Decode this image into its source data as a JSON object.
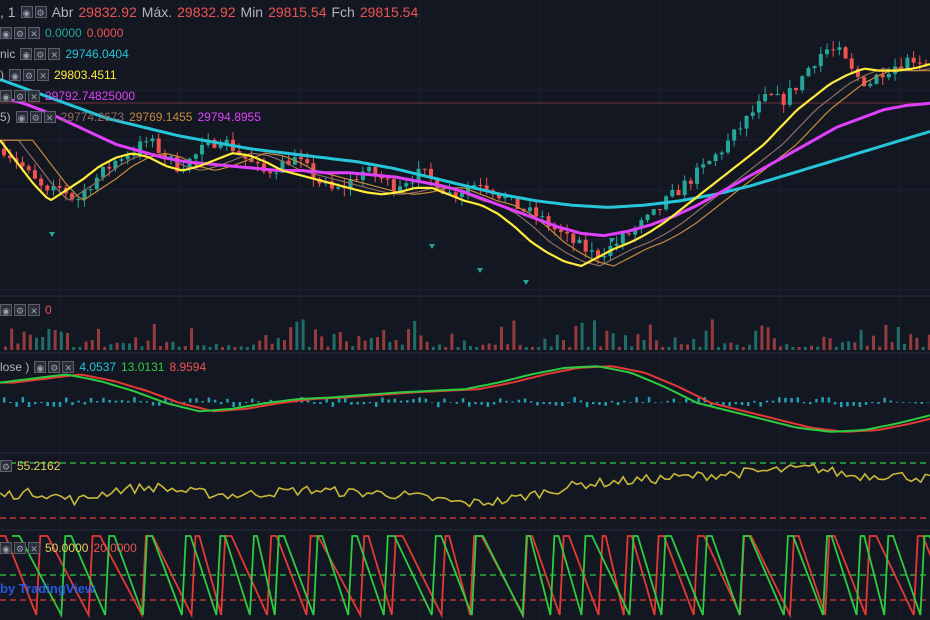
{
  "header": {
    "symbol_suffix": ", 1",
    "open_label": "Abr",
    "open_value": "29832.92",
    "high_label": "Máx.",
    "high_value": "29832.92",
    "low_label": "Min",
    "low_value": "29815.54",
    "close_label": "Fch",
    "close_value": "29815.54"
  },
  "overlays": {
    "row1_value": "0.0000",
    "row1_value2": "0.0000",
    "row2_label": "nic",
    "row2_value": "29746.0404",
    "row3_label": ")",
    "row3_value": "29803.4511",
    "row4_value": "29792.74825000",
    "row5_label": "5)",
    "row5_values": [
      "29774.2673",
      "29769.1455",
      "29794.8955"
    ]
  },
  "volume_pane": {
    "value": "0"
  },
  "macd_pane": {
    "label": "lose )",
    "values": [
      "4.0537",
      "13.0131",
      "8.9594"
    ]
  },
  "rsi_pane": {
    "value": "55.2162"
  },
  "stoch_pane": {
    "values": [
      "50.0000",
      "20.0000"
    ]
  },
  "watermark": "by TradingView",
  "colors": {
    "background": "#131722",
    "up": "#26a69a",
    "down": "#ef5350",
    "ma_yellow": "#ffeb3b",
    "ma_magenta": "#e040fb",
    "ma_cyan": "#26c6da",
    "ma_orange": "#c68a3b",
    "ma_brown": "#8d6e63",
    "osc_green": "#2ecc40",
    "osc_red": "#e53935",
    "rsi_line": "#c9b838"
  },
  "chart_data": [
    {
      "type": "candlestick",
      "pane": "price",
      "closes": [
        29776,
        29770,
        29762,
        29755,
        29758,
        29752,
        29760,
        29766,
        29772,
        29775,
        29780,
        29774,
        29768,
        29771,
        29777,
        29781,
        29776,
        29770,
        29765,
        29768,
        29772,
        29767,
        29760,
        29756,
        29761,
        29766,
        29763,
        29759,
        29762,
        29765,
        29760,
        29755,
        29758,
        29761,
        29757,
        29752,
        29748,
        29745,
        29740,
        29735,
        29731,
        29727,
        29730,
        29735,
        29740,
        29745,
        29752,
        29758,
        29764,
        29770,
        29777,
        29785,
        29793,
        29800,
        29798,
        29805,
        29815,
        29822,
        29820,
        29810,
        29806,
        29812,
        29815,
        29818,
        29816
      ],
      "x_start_index": 0,
      "ylim": [
        29710,
        29840
      ]
    },
    {
      "type": "line",
      "pane": "price",
      "series": [
        {
          "name": "",
          "color": "yellow",
          "values": [
            29780,
            29770,
            29760,
            29752,
            29757,
            29762,
            29768,
            29772,
            29774,
            29772,
            29768,
            29766,
            29768,
            29771,
            29774,
            29773,
            29770,
            29766,
            29764,
            29762,
            29760,
            29758,
            29756,
            29755,
            29756,
            29758,
            29758,
            29755,
            29752,
            29750,
            29746,
            29740,
            29733,
            29728,
            29724,
            29722,
            29726,
            29730,
            29733,
            29737,
            29742,
            29748,
            29754,
            29760,
            29766,
            29772,
            29778,
            29786,
            29794,
            29800,
            29806,
            29810,
            29813,
            29812,
            29812,
            29813,
            29815
          ]
        },
        {
          "name": "",
          "color": "magenta",
          "values": [
            29800,
            29797,
            29793,
            29788,
            29783,
            29778,
            29775,
            29772,
            29770,
            29769,
            29768,
            29767,
            29766,
            29766,
            29765,
            29765,
            29764,
            29763,
            29761,
            29759,
            29756,
            29752,
            29748,
            29744,
            29740,
            29737,
            29736,
            29738,
            29741,
            29745,
            29750,
            29756,
            29762,
            29768,
            29774,
            29780,
            29786,
            29790,
            29794,
            29796,
            29797
          ]
        },
        {
          "name": "",
          "color": "cyan",
          "values": [
            29808,
            29802,
            29796,
            29790,
            29786,
            29782,
            29779,
            29776,
            29774,
            29772,
            29770,
            29767,
            29763,
            29759,
            29755,
            29752,
            29750,
            29749,
            29750,
            29752,
            29755,
            29759,
            29764,
            29769,
            29774,
            29779,
            29784
          ]
        }
      ]
    },
    {
      "type": "bar",
      "pane": "volume"
    },
    {
      "type": "line",
      "pane": "macd",
      "series": [
        {
          "name": "",
          "color": "green"
        },
        {
          "name": "",
          "color": "red"
        }
      ]
    },
    {
      "type": "line",
      "pane": "rsi",
      "levels": [
        70,
        30
      ]
    },
    {
      "type": "line",
      "pane": "stochastic",
      "series": [
        {
          "name": "",
          "color": "green"
        },
        {
          "name": "",
          "color": "red"
        }
      ]
    }
  ]
}
